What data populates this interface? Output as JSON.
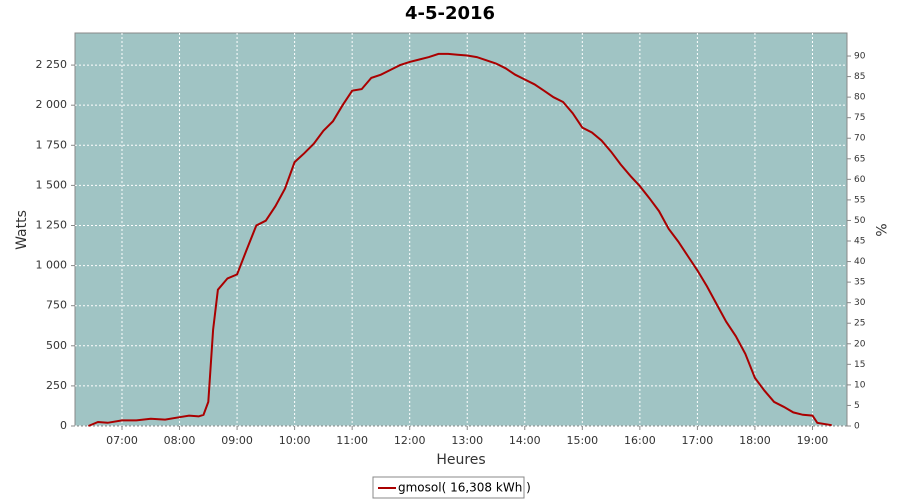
{
  "chart_data": {
    "type": "line",
    "title": "4-5-2016",
    "x_label": "Heures",
    "y_label": "Watts",
    "y2_label": "%",
    "x": [
      "06:25",
      "06:35",
      "06:45",
      "07:00",
      "07:15",
      "07:30",
      "07:45",
      "08:00",
      "08:10",
      "08:20",
      "08:25",
      "08:30",
      "08:35",
      "08:40",
      "08:50",
      "09:00",
      "09:10",
      "09:20",
      "09:30",
      "09:40",
      "09:50",
      "10:00",
      "10:10",
      "10:20",
      "10:30",
      "10:40",
      "10:50",
      "11:00",
      "11:10",
      "11:20",
      "11:30",
      "11:40",
      "11:50",
      "12:00",
      "12:10",
      "12:20",
      "12:30",
      "12:40",
      "12:50",
      "13:00",
      "13:10",
      "13:20",
      "13:30",
      "13:40",
      "13:50",
      "14:00",
      "14:10",
      "14:20",
      "14:30",
      "14:40",
      "14:50",
      "15:00",
      "15:10",
      "15:20",
      "15:30",
      "15:40",
      "15:50",
      "16:00",
      "16:10",
      "16:20",
      "16:30",
      "16:40",
      "16:50",
      "17:00",
      "17:10",
      "17:20",
      "17:30",
      "17:40",
      "17:50",
      "18:00",
      "18:10",
      "18:20",
      "18:30",
      "18:40",
      "18:50",
      "19:00",
      "19:05",
      "19:20"
    ],
    "series": [
      {
        "name": "gmosol( 16,308 kWh )",
        "color": "#aa0000",
        "values": [
          0,
          25,
          20,
          35,
          35,
          45,
          40,
          55,
          65,
          60,
          70,
          150,
          600,
          850,
          920,
          945,
          1100,
          1250,
          1280,
          1370,
          1480,
          1645,
          1700,
          1760,
          1840,
          1900,
          2000,
          2090,
          2100,
          2170,
          2190,
          2220,
          2250,
          2270,
          2285,
          2300,
          2320,
          2320,
          2315,
          2310,
          2300,
          2280,
          2260,
          2230,
          2190,
          2160,
          2130,
          2090,
          2050,
          2020,
          1950,
          1860,
          1830,
          1780,
          1710,
          1630,
          1560,
          1495,
          1420,
          1340,
          1230,
          1150,
          1060,
          970,
          870,
          760,
          650,
          560,
          450,
          300,
          220,
          150,
          120,
          85,
          70,
          65,
          20,
          5
        ]
      }
    ],
    "xlim": [
      "06:11",
      "19:36"
    ],
    "xticks": [
      "07:00",
      "08:00",
      "09:00",
      "10:00",
      "11:00",
      "12:00",
      "13:00",
      "14:00",
      "15:00",
      "16:00",
      "17:00",
      "18:00",
      "19:00"
    ],
    "ylim": [
      0,
      2450
    ],
    "yticks": [
      0,
      250,
      500,
      750,
      {
        "value": 1000,
        "label": "1 000"
      },
      {
        "value": 1250,
        "label": "1 250"
      },
      {
        "value": 1500,
        "label": "1 500"
      },
      {
        "value": 1750,
        "label": "1 750"
      },
      {
        "value": 2000,
        "label": "2 000"
      },
      {
        "value": 2250,
        "label": "2 250"
      }
    ],
    "y2lim": [
      0,
      95.6
    ],
    "y2ticks": [
      0,
      5,
      10,
      15,
      20,
      25,
      30,
      35,
      40,
      45,
      50,
      55,
      60,
      65,
      70,
      75,
      80,
      85,
      90
    ],
    "grid": true,
    "plot_background": "#a0c4c4",
    "legend": "bottom"
  }
}
